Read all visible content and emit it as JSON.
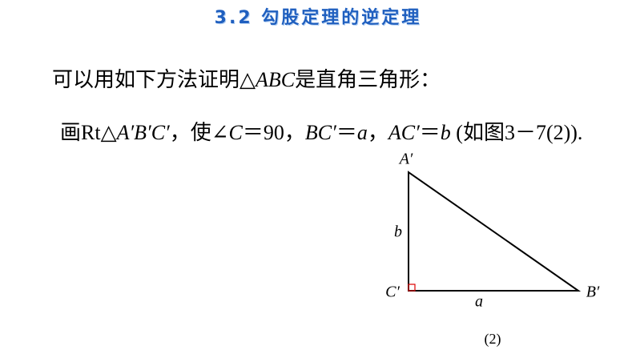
{
  "header": {
    "title": "3.2 勾股定理的逆定理"
  },
  "paragraphs": [
    {
      "runs": [
        {
          "text": "可以用如下方法证明△",
          "italic": false
        },
        {
          "text": "ABC",
          "italic": true
        },
        {
          "text": "是直角三角形：",
          "italic": false
        }
      ]
    },
    {
      "runs": [
        {
          "text": "画Rt△",
          "italic": false
        },
        {
          "text": "A′B′C′",
          "italic": true
        },
        {
          "text": "，使∠",
          "italic": false
        },
        {
          "text": "C",
          "italic": true
        },
        {
          "text": "＝90，",
          "italic": false
        },
        {
          "text": "BC′",
          "italic": true
        },
        {
          "text": "＝",
          "italic": false
        },
        {
          "text": "a",
          "italic": true
        },
        {
          "text": "，",
          "italic": false
        },
        {
          "text": "AC′",
          "italic": true
        },
        {
          "text": "＝",
          "italic": false
        },
        {
          "text": "b",
          "italic": true
        },
        {
          "text": " (如图3－7(2)).",
          "italic": false
        }
      ]
    }
  ],
  "figure": {
    "labels": {
      "A": "A′",
      "B": "B′",
      "C": "C′",
      "a": "a",
      "b": "b"
    },
    "caption": "(2)"
  }
}
